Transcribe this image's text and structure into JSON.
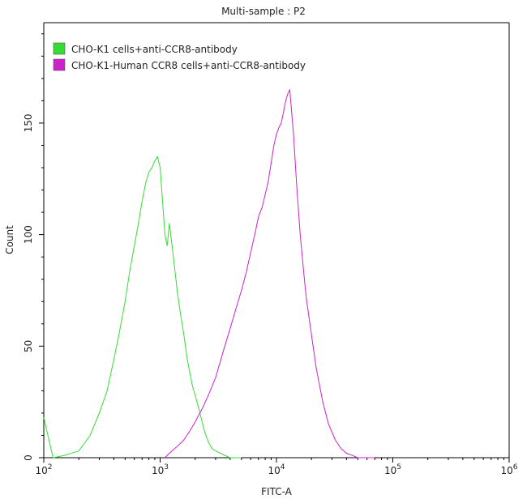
{
  "chart_data": {
    "type": "line",
    "title": "Multi-sample : P2",
    "xlabel": "FITC-A",
    "ylabel": "Count",
    "x_scale": "log",
    "xlim": [
      100,
      1000000
    ],
    "ylim": [
      0,
      195
    ],
    "grid": false,
    "legend_position": "top-left",
    "x_ticks": [
      {
        "value": 100,
        "base": "10",
        "exp": "2"
      },
      {
        "value": 1000,
        "base": "10",
        "exp": "3"
      },
      {
        "value": 10000,
        "base": "10",
        "exp": "4"
      },
      {
        "value": 100000,
        "base": "10",
        "exp": "5"
      },
      {
        "value": 1000000,
        "base": "10",
        "exp": "6"
      }
    ],
    "y_ticks": [
      0,
      50,
      100,
      150
    ],
    "series": [
      {
        "name": "CHO-K1 cells+anti-CCR8-antibody",
        "color": "#33dd33",
        "x": [
          100,
          120,
          150,
          200,
          250,
          300,
          350,
          400,
          450,
          500,
          550,
          600,
          650,
          700,
          750,
          800,
          850,
          900,
          950,
          1000,
          1050,
          1100,
          1150,
          1200,
          1300,
          1400,
          1500,
          1600,
          1700,
          1800,
          1900,
          2000,
          2200,
          2400,
          2600,
          2800,
          3000,
          3300,
          3600,
          4000,
          4500,
          5000
        ],
        "y": [
          18,
          0,
          1,
          3,
          10,
          20,
          30,
          44,
          57,
          70,
          84,
          95,
          105,
          115,
          123,
          128,
          130,
          133,
          135,
          130,
          115,
          100,
          95,
          105,
          90,
          75,
          64,
          55,
          45,
          38,
          32,
          28,
          20,
          12,
          7,
          4,
          3,
          2,
          1,
          0,
          0,
          0
        ]
      },
      {
        "name": "CHO-K1-Human CCR8 cells+anti-CCR8-antibody",
        "color": "#cc22cc",
        "x": [
          1100,
          1200,
          1400,
          1600,
          1800,
          2000,
          2300,
          2600,
          3000,
          3500,
          4000,
          4500,
          5000,
          5500,
          6000,
          6500,
          7000,
          7500,
          8000,
          8500,
          9000,
          9500,
          10000,
          10500,
          11000,
          11500,
          12000,
          12500,
          13000,
          13500,
          14000,
          15000,
          16000,
          17000,
          18000,
          20000,
          22000,
          25000,
          28000,
          32000,
          36000,
          40000,
          45000,
          50000,
          60000,
          70000
        ],
        "y": [
          0,
          2,
          5,
          8,
          12,
          16,
          22,
          28,
          36,
          48,
          58,
          67,
          75,
          83,
          92,
          100,
          108,
          112,
          118,
          124,
          132,
          140,
          145,
          148,
          150,
          155,
          160,
          163,
          165,
          155,
          145,
          120,
          100,
          85,
          72,
          55,
          40,
          25,
          15,
          8,
          4,
          2,
          1,
          0,
          0,
          0
        ]
      }
    ]
  }
}
